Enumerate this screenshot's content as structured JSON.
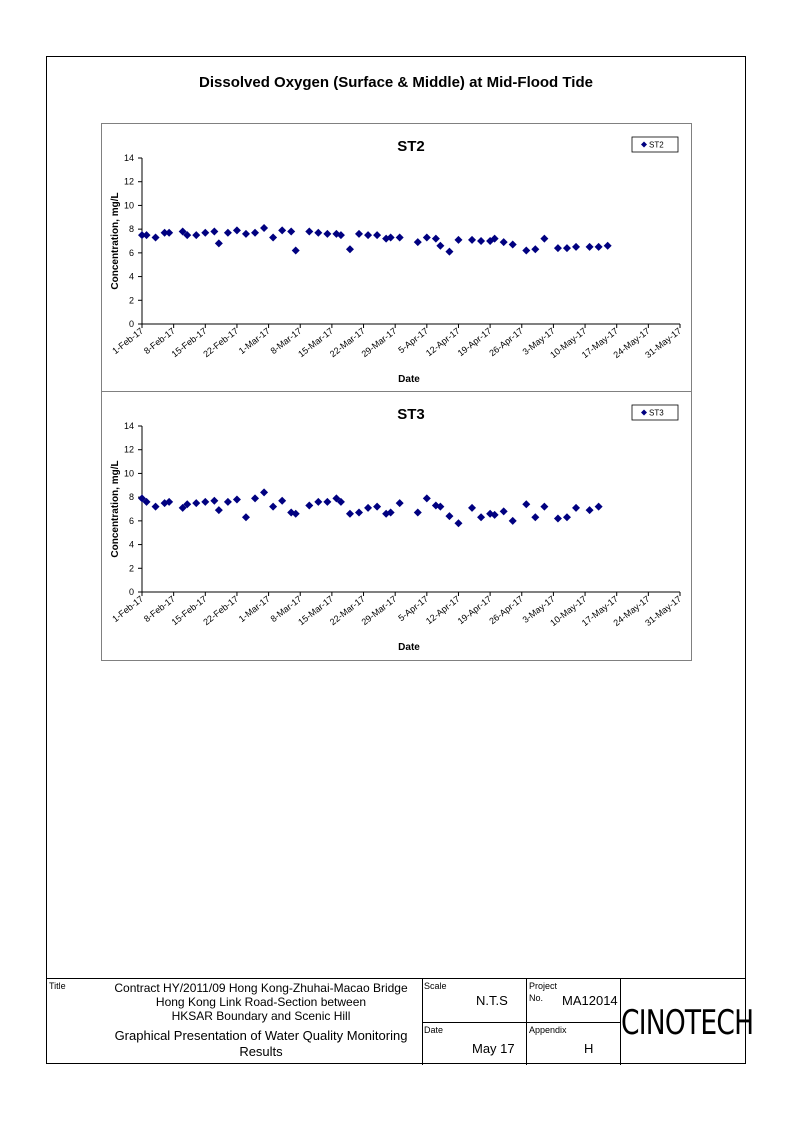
{
  "page_title": "Dissolved Oxygen (Surface & Middle) at Mid-Flood Tide",
  "title_block": {
    "title_label": "Title",
    "title_lines": [
      "Contract HY/2011/09 Hong Kong-Zhuhai-Macao Bridge",
      "Hong Kong Link Road-Section between",
      "HKSAR Boundary and Scenic Hill"
    ],
    "subtitle_lines": [
      "Graphical Presentation of Water Quality Monitoring",
      "Results"
    ],
    "scale_label": "Scale",
    "scale_value": "N.T.S",
    "project_label": "Project",
    "no_label": "No.",
    "project_no": "MA12014",
    "date_label": "Date",
    "date_value": "May 17",
    "appendix_label": "Appendix",
    "appendix_value": "H",
    "logo_text": "CINOTECH"
  },
  "chart_data": [
    {
      "type": "scatter",
      "title": "ST2",
      "xlabel": "Date",
      "ylabel": "Concentration, mg/L",
      "ylim": [
        0,
        14
      ],
      "yticks": [
        0,
        2,
        4,
        6,
        8,
        10,
        12,
        14
      ],
      "xlim": [
        "2017-02-01",
        "2017-05-31"
      ],
      "xticks": [
        "1-Feb-17",
        "8-Feb-17",
        "15-Feb-17",
        "22-Feb-17",
        "1-Mar-17",
        "8-Mar-17",
        "15-Mar-17",
        "22-Mar-17",
        "29-Mar-17",
        "5-Apr-17",
        "12-Apr-17",
        "19-Apr-17",
        "26-Apr-17",
        "3-May-17",
        "10-May-17",
        "17-May-17",
        "24-May-17",
        "31-May-17"
      ],
      "legend": "top-right",
      "marker_color": "#000080",
      "series": [
        {
          "name": "ST2",
          "points": [
            [
              "2017-02-01",
              7.5
            ],
            [
              "2017-02-02",
              7.5
            ],
            [
              "2017-02-04",
              7.3
            ],
            [
              "2017-02-06",
              7.7
            ],
            [
              "2017-02-07",
              7.7
            ],
            [
              "2017-02-10",
              7.8
            ],
            [
              "2017-02-11",
              7.5
            ],
            [
              "2017-02-13",
              7.5
            ],
            [
              "2017-02-15",
              7.7
            ],
            [
              "2017-02-17",
              7.8
            ],
            [
              "2017-02-18",
              6.8
            ],
            [
              "2017-02-20",
              7.7
            ],
            [
              "2017-02-22",
              7.9
            ],
            [
              "2017-02-24",
              7.6
            ],
            [
              "2017-02-26",
              7.7
            ],
            [
              "2017-02-28",
              8.1
            ],
            [
              "2017-03-02",
              7.3
            ],
            [
              "2017-03-04",
              7.9
            ],
            [
              "2017-03-06",
              7.8
            ],
            [
              "2017-03-07",
              6.2
            ],
            [
              "2017-03-10",
              7.8
            ],
            [
              "2017-03-12",
              7.7
            ],
            [
              "2017-03-14",
              7.6
            ],
            [
              "2017-03-16",
              7.6
            ],
            [
              "2017-03-17",
              7.5
            ],
            [
              "2017-03-19",
              6.3
            ],
            [
              "2017-03-21",
              7.6
            ],
            [
              "2017-03-23",
              7.5
            ],
            [
              "2017-03-25",
              7.5
            ],
            [
              "2017-03-27",
              7.2
            ],
            [
              "2017-03-28",
              7.3
            ],
            [
              "2017-03-30",
              7.3
            ],
            [
              "2017-04-03",
              6.9
            ],
            [
              "2017-04-05",
              7.3
            ],
            [
              "2017-04-07",
              7.2
            ],
            [
              "2017-04-08",
              6.6
            ],
            [
              "2017-04-10",
              6.1
            ],
            [
              "2017-04-12",
              7.1
            ],
            [
              "2017-04-15",
              7.1
            ],
            [
              "2017-04-17",
              7.0
            ],
            [
              "2017-04-19",
              7.0
            ],
            [
              "2017-04-20",
              7.2
            ],
            [
              "2017-04-22",
              6.9
            ],
            [
              "2017-04-24",
              6.7
            ],
            [
              "2017-04-27",
              6.2
            ],
            [
              "2017-04-29",
              6.3
            ],
            [
              "2017-05-01",
              7.2
            ],
            [
              "2017-05-04",
              6.4
            ],
            [
              "2017-05-06",
              6.4
            ],
            [
              "2017-05-08",
              6.5
            ],
            [
              "2017-05-11",
              6.5
            ],
            [
              "2017-05-13",
              6.5
            ],
            [
              "2017-05-15",
              6.6
            ]
          ]
        }
      ]
    },
    {
      "type": "scatter",
      "title": "ST3",
      "xlabel": "Date",
      "ylabel": "Concentration, mg/L",
      "ylim": [
        0,
        14
      ],
      "yticks": [
        0,
        2,
        4,
        6,
        8,
        10,
        12,
        14
      ],
      "xlim": [
        "2017-02-01",
        "2017-05-31"
      ],
      "xticks": [
        "1-Feb-17",
        "8-Feb-17",
        "15-Feb-17",
        "22-Feb-17",
        "1-Mar-17",
        "8-Mar-17",
        "15-Mar-17",
        "22-Mar-17",
        "29-Mar-17",
        "5-Apr-17",
        "12-Apr-17",
        "19-Apr-17",
        "26-Apr-17",
        "3-May-17",
        "10-May-17",
        "17-May-17",
        "24-May-17",
        "31-May-17"
      ],
      "legend": "top-right",
      "marker_color": "#000080",
      "series": [
        {
          "name": "ST3",
          "points": [
            [
              "2017-02-01",
              7.9
            ],
            [
              "2017-02-02",
              7.6
            ],
            [
              "2017-02-04",
              7.2
            ],
            [
              "2017-02-06",
              7.5
            ],
            [
              "2017-02-07",
              7.6
            ],
            [
              "2017-02-10",
              7.1
            ],
            [
              "2017-02-11",
              7.4
            ],
            [
              "2017-02-13",
              7.5
            ],
            [
              "2017-02-15",
              7.6
            ],
            [
              "2017-02-17",
              7.7
            ],
            [
              "2017-02-18",
              6.9
            ],
            [
              "2017-02-20",
              7.6
            ],
            [
              "2017-02-22",
              7.8
            ],
            [
              "2017-02-24",
              6.3
            ],
            [
              "2017-02-26",
              7.9
            ],
            [
              "2017-02-28",
              8.4
            ],
            [
              "2017-03-02",
              7.2
            ],
            [
              "2017-03-04",
              7.7
            ],
            [
              "2017-03-06",
              6.7
            ],
            [
              "2017-03-07",
              6.6
            ],
            [
              "2017-03-10",
              7.3
            ],
            [
              "2017-03-12",
              7.6
            ],
            [
              "2017-03-14",
              7.6
            ],
            [
              "2017-03-16",
              7.9
            ],
            [
              "2017-03-17",
              7.6
            ],
            [
              "2017-03-19",
              6.6
            ],
            [
              "2017-03-21",
              6.7
            ],
            [
              "2017-03-23",
              7.1
            ],
            [
              "2017-03-25",
              7.2
            ],
            [
              "2017-03-27",
              6.6
            ],
            [
              "2017-03-28",
              6.7
            ],
            [
              "2017-03-30",
              7.5
            ],
            [
              "2017-04-03",
              6.7
            ],
            [
              "2017-04-05",
              7.9
            ],
            [
              "2017-04-07",
              7.3
            ],
            [
              "2017-04-08",
              7.2
            ],
            [
              "2017-04-10",
              6.4
            ],
            [
              "2017-04-12",
              5.8
            ],
            [
              "2017-04-15",
              7.1
            ],
            [
              "2017-04-17",
              6.3
            ],
            [
              "2017-04-19",
              6.6
            ],
            [
              "2017-04-20",
              6.5
            ],
            [
              "2017-04-22",
              6.8
            ],
            [
              "2017-04-24",
              6.0
            ],
            [
              "2017-04-27",
              7.4
            ],
            [
              "2017-04-29",
              6.3
            ],
            [
              "2017-05-01",
              7.2
            ],
            [
              "2017-05-04",
              6.2
            ],
            [
              "2017-05-06",
              6.3
            ],
            [
              "2017-05-08",
              7.1
            ],
            [
              "2017-05-11",
              6.9
            ],
            [
              "2017-05-13",
              7.2
            ]
          ]
        }
      ]
    }
  ]
}
